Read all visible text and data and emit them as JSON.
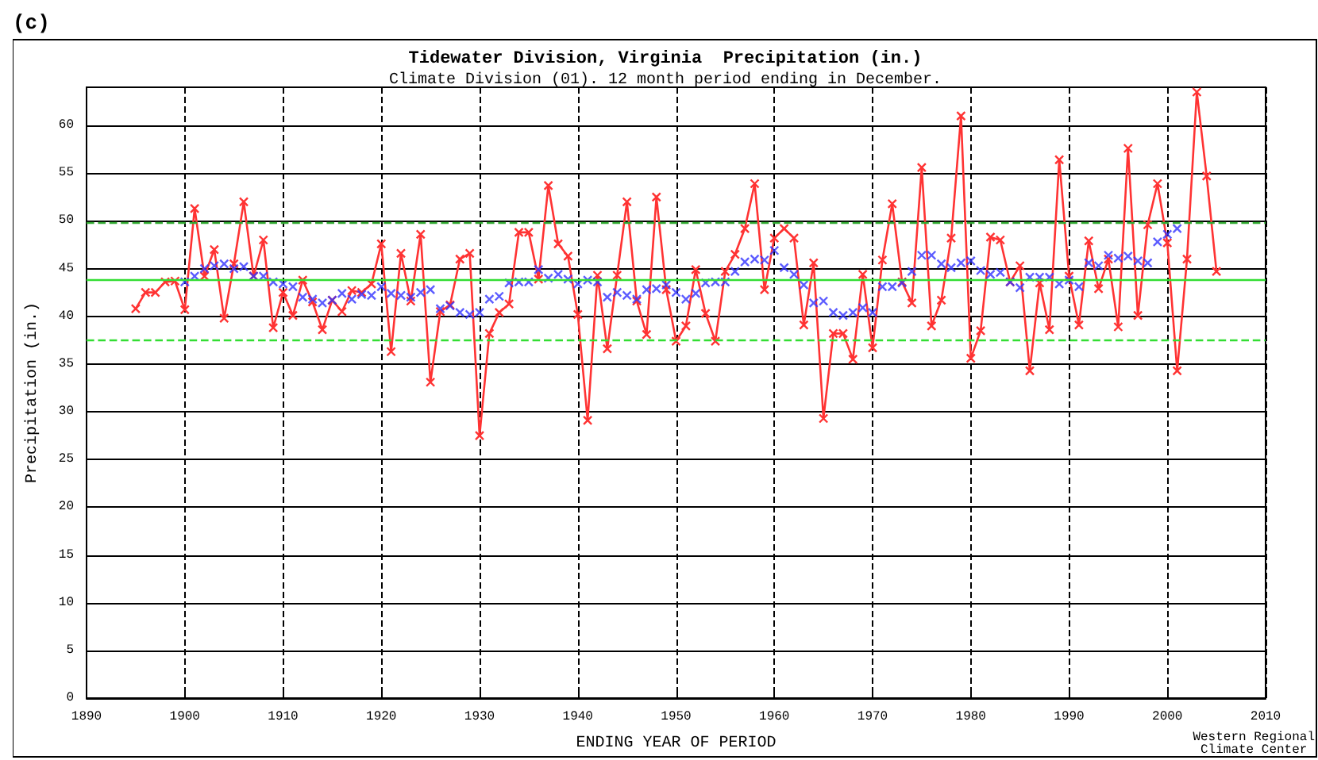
{
  "chart_data": {
    "type": "line",
    "title": "Tidewater Division, Virginia  Precipitation (in.)",
    "subtitle": "Climate Division (01). 12 month period ending in December.",
    "xlabel": "ENDING YEAR OF PERIOD",
    "ylabel": "Precipitation (in.)",
    "xlim": [
      1890,
      2010
    ],
    "xticks": [
      1890,
      1900,
      1910,
      1920,
      1930,
      1940,
      1950,
      1960,
      1970,
      1980,
      1990,
      2000,
      2010
    ],
    "ylim": [
      0,
      64
    ],
    "yticks": [
      0,
      5,
      10,
      15,
      20,
      25,
      30,
      35,
      40,
      45,
      50,
      55,
      60
    ],
    "grid": true,
    "marker": "cross",
    "line_style": "solid",
    "series": [
      {
        "color": "#ff3333",
        "x": [
          1895,
          1896,
          1897,
          1898,
          1899,
          1900,
          1901,
          1902,
          1903,
          1904,
          1905,
          1906,
          1907,
          1908,
          1909,
          1910,
          1911,
          1912,
          1913,
          1914,
          1915,
          1916,
          1917,
          1918,
          1919,
          1920,
          1921,
          1922,
          1923,
          1924,
          1925,
          1926,
          1927,
          1928,
          1929,
          1930,
          1931,
          1932,
          1933,
          1934,
          1935,
          1936,
          1937,
          1938,
          1939,
          1940,
          1941,
          1942,
          1943,
          1944,
          1945,
          1946,
          1947,
          1948,
          1949,
          1950,
          1951,
          1952,
          1953,
          1954,
          1955,
          1956,
          1957,
          1958,
          1959,
          1960,
          1961,
          1962,
          1963,
          1964,
          1965,
          1966,
          1967,
          1968,
          1969,
          1970,
          1971,
          1972,
          1973,
          1974,
          1975,
          1976,
          1977,
          1978,
          1979,
          1980,
          1981,
          1982,
          1983,
          1984,
          1985,
          1986,
          1987,
          1988,
          1989,
          1990,
          1991,
          1992,
          1993,
          1994,
          1995,
          1996,
          1997,
          1998,
          1999,
          2000,
          2001,
          2002,
          2003,
          2004,
          2005
        ],
        "values": [
          40.8,
          42.5,
          42.5,
          43.6,
          43.7,
          40.7,
          51.3,
          44.2,
          47.0,
          39.8,
          45.5,
          52.0,
          44.2,
          48.0,
          38.8,
          42.5,
          40.1,
          43.8,
          41.5,
          38.6,
          41.7,
          40.5,
          42.7,
          42.5,
          43.4,
          47.6,
          36.3,
          46.6,
          41.6,
          48.6,
          33.1,
          40.5,
          41.2,
          46.0,
          46.6,
          27.5,
          38.2,
          40.4,
          41.3,
          48.8,
          48.8,
          43.9,
          53.7,
          47.6,
          46.3,
          40.2,
          29.1,
          44.3,
          36.6,
          44.3,
          52.0,
          41.6,
          38.1,
          52.5,
          42.8,
          37.4,
          39.0,
          44.9,
          40.3,
          37.4,
          44.7,
          46.5,
          49.2,
          53.9,
          42.8,
          48.2,
          49.2,
          48.2,
          39.1,
          45.6,
          29.3,
          38.2,
          38.2,
          35.5,
          44.4,
          36.7,
          45.9,
          51.8,
          43.6,
          41.4,
          55.6,
          39.0,
          41.7,
          48.2,
          61.0,
          35.6,
          38.5,
          48.3,
          48.0,
          43.6,
          45.3,
          34.3,
          43.5,
          38.6,
          56.4,
          44.2,
          39.1,
          47.9,
          42.9,
          46.0,
          38.9,
          57.6,
          40.1,
          49.6,
          53.9,
          47.7,
          34.3,
          46.0,
          63.5,
          54.7,
          44.7
        ]
      },
      {
        "type": "scatter",
        "color": "#3333ff",
        "x": [
          1900,
          1901,
          1902,
          1903,
          1904,
          1905,
          1906,
          1907,
          1908,
          1909,
          1910,
          1911,
          1912,
          1913,
          1914,
          1915,
          1916,
          1917,
          1918,
          1919,
          1920,
          1921,
          1922,
          1923,
          1924,
          1925,
          1926,
          1927,
          1928,
          1929,
          1930,
          1931,
          1932,
          1933,
          1934,
          1935,
          1936,
          1937,
          1938,
          1939,
          1940,
          1941,
          1942,
          1943,
          1944,
          1945,
          1946,
          1947,
          1948,
          1949,
          1950,
          1951,
          1952,
          1953,
          1954,
          1955,
          1956,
          1957,
          1958,
          1959,
          1960,
          1961,
          1962,
          1963,
          1964,
          1965,
          1966,
          1967,
          1968,
          1969,
          1970,
          1971,
          1972,
          1973,
          1974,
          1975,
          1976,
          1977,
          1978,
          1979,
          1980,
          1981,
          1982,
          1983,
          1984,
          1985,
          1986,
          1987,
          1988,
          1989,
          1990,
          1991,
          1992,
          1993,
          1994,
          1995,
          1996,
          1997,
          1998,
          1999,
          2000,
          2001
        ],
        "values": [
          43.6,
          44.2,
          45.0,
          45.3,
          45.5,
          45.0,
          45.2,
          44.2,
          44.2,
          43.6,
          43.4,
          43.1,
          42.0,
          41.8,
          41.4,
          41.7,
          42.4,
          41.8,
          42.3,
          42.2,
          43.1,
          42.4,
          42.2,
          42.0,
          42.5,
          42.8,
          40.8,
          41.1,
          40.4,
          40.2,
          40.4,
          41.8,
          42.1,
          43.5,
          43.6,
          43.6,
          44.9,
          44.0,
          44.4,
          43.9,
          43.4,
          43.8,
          43.6,
          42.0,
          42.5,
          42.2,
          41.8,
          42.8,
          42.9,
          43.3,
          42.5,
          41.8,
          42.4,
          43.5,
          43.6,
          43.6,
          44.7,
          45.7,
          46.0,
          45.9,
          46.9,
          45.1,
          44.4,
          43.3,
          41.4,
          41.6,
          40.4,
          40.1,
          40.4,
          40.9,
          40.4,
          43.1,
          43.1,
          43.5,
          44.7,
          46.4,
          46.4,
          45.5,
          45.1,
          45.6,
          45.8,
          44.8,
          44.4,
          44.6,
          43.6,
          43.0,
          44.1,
          44.1,
          44.1,
          43.4,
          43.8,
          43.1,
          45.6,
          45.3,
          46.4,
          46.1,
          46.3,
          45.8,
          45.6,
          47.8,
          48.6,
          49.2
        ]
      }
    ],
    "ref_lines": [
      {
        "axis": "y",
        "value": 43.8,
        "color": "#33dd33",
        "line_style": "solid"
      },
      {
        "axis": "y",
        "value": 49.9,
        "color": "#33aa33",
        "line_style": "dashed"
      },
      {
        "axis": "y",
        "value": 37.6,
        "color": "#33dd33",
        "line_style": "dashed"
      }
    ],
    "annotations": [
      "(c)",
      "Western Regional Climate Center"
    ]
  }
}
